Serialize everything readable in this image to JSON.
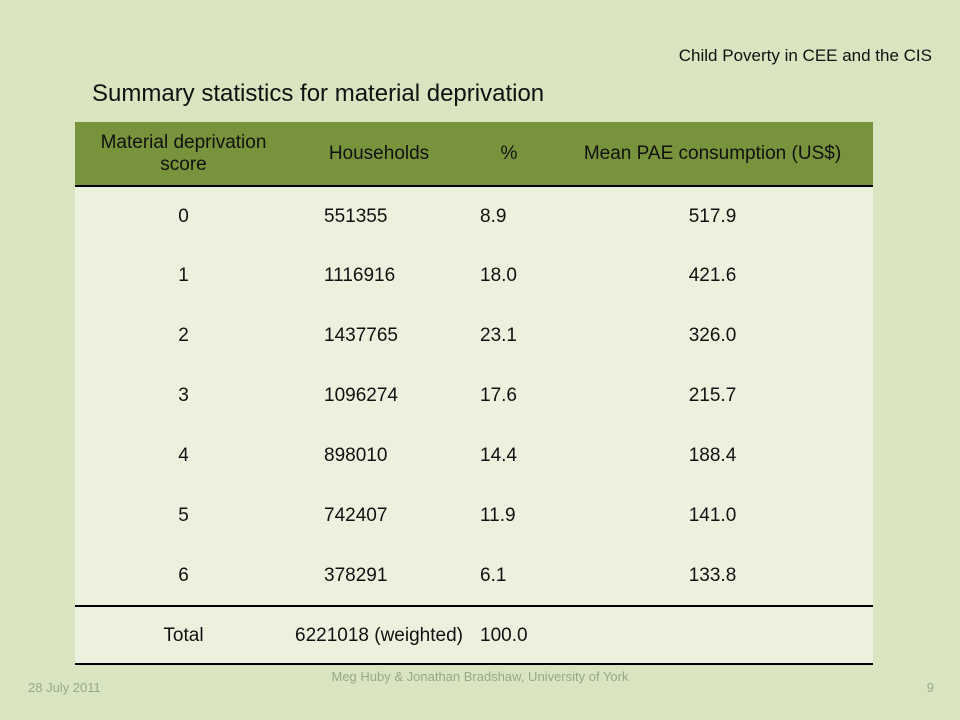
{
  "slide": {
    "header_right": "Child Poverty in CEE and the CIS",
    "title": "Summary statistics for material deprivation"
  },
  "table": {
    "headers": [
      "Material deprivation score",
      "Households",
      "%",
      "Mean PAE consumption (US$)"
    ],
    "rows": [
      {
        "score": "0",
        "households": "551355",
        "pct": "8.9",
        "mean": "517.9"
      },
      {
        "score": "1",
        "households": "1116916",
        "pct": "18.0",
        "mean": "421.6"
      },
      {
        "score": "2",
        "households": "1437765",
        "pct": "23.1",
        "mean": "326.0"
      },
      {
        "score": "3",
        "households": "1096274",
        "pct": "17.6",
        "mean": "215.7"
      },
      {
        "score": "4",
        "households": "898010",
        "pct": "14.4",
        "mean": "188.4"
      },
      {
        "score": "5",
        "households": "742407",
        "pct": "11.9",
        "mean": "141.0"
      },
      {
        "score": "6",
        "households": "378291",
        "pct": "6.1",
        "mean": "133.8"
      }
    ],
    "total": {
      "label": "Total",
      "households": "6221018 (weighted)",
      "pct": "100.0",
      "mean": ""
    }
  },
  "footer": {
    "date": "28 July 2011",
    "authors": "Meg Huby & Jonathan Bradshaw, University of York",
    "page": "9"
  },
  "colors": {
    "background": "#d9e4c0",
    "header_fill": "#77933c",
    "body_fill": "#ebf1dd"
  }
}
